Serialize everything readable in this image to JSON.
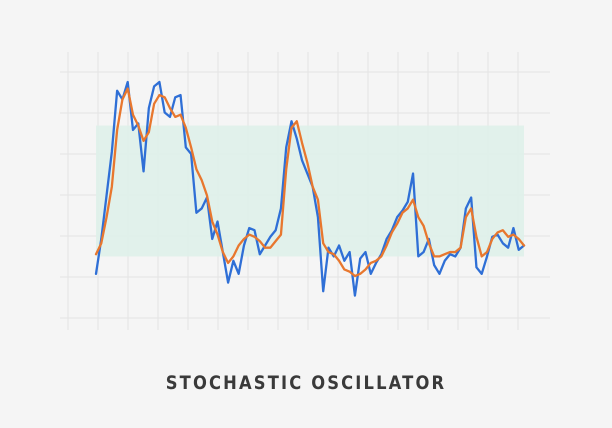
{
  "chart_data": {
    "type": "line",
    "title": "STOCHASTIC OSCILLATOR",
    "xlabel": "",
    "ylabel": "",
    "x": [
      0,
      1,
      2,
      3,
      4,
      5,
      6,
      7,
      8,
      9,
      10,
      11,
      12,
      13,
      14,
      15,
      16,
      17,
      18,
      19,
      20,
      21,
      22,
      23,
      24,
      25,
      26,
      27,
      28,
      29,
      30,
      31,
      32,
      33,
      34,
      35,
      36,
      37,
      38,
      39,
      40,
      41,
      42,
      43,
      44,
      45,
      46,
      47,
      48,
      49,
      50,
      51,
      52,
      53,
      54,
      55,
      56,
      57,
      58,
      59,
      60,
      61,
      62,
      63,
      64,
      65,
      66,
      67,
      68,
      69,
      70,
      71,
      72,
      73,
      74,
      75,
      76,
      77,
      78,
      79,
      80,
      81
    ],
    "xlim": [
      0,
      81
    ],
    "ylim": [
      0,
      100
    ],
    "grid": true,
    "overbought": 80,
    "oversold": 20,
    "series": [
      {
        "color": "#2f6fd6",
        "values": [
          12,
          28,
          48,
          68,
          96,
          92,
          100,
          78,
          81,
          59,
          88,
          98,
          100,
          86,
          84,
          93,
          94,
          70,
          67,
          40,
          42,
          47,
          28,
          36,
          22,
          8,
          18,
          12,
          25,
          33,
          32,
          21,
          25,
          29,
          32,
          42,
          70,
          82,
          74,
          64,
          58,
          52,
          38,
          4,
          24,
          20,
          25,
          18,
          22,
          2,
          19,
          22,
          12,
          17,
          21,
          28,
          32,
          38,
          41,
          45,
          58,
          20,
          22,
          28,
          16,
          12,
          18,
          21,
          20,
          24,
          42,
          47,
          15,
          12,
          20,
          29,
          30,
          26,
          24,
          33,
          23,
          25
        ]
      },
      {
        "color": "#e8772e",
        "values": [
          21,
          26,
          38,
          52,
          78,
          92,
          97,
          85,
          80,
          73,
          77,
          90,
          94,
          93,
          88,
          84,
          85,
          79,
          70,
          60,
          55,
          48,
          36,
          30,
          22,
          17,
          20,
          25,
          28,
          30,
          29,
          27,
          24,
          24,
          27,
          30,
          60,
          79,
          82,
          72,
          63,
          52,
          46,
          26,
          22,
          21,
          18,
          14,
          13,
          11,
          12,
          14,
          17,
          18,
          20,
          25,
          31,
          35,
          40,
          42,
          46,
          38,
          34,
          26,
          20,
          20,
          21,
          22,
          22,
          24,
          38,
          42,
          29,
          20,
          22,
          28,
          31,
          32,
          29,
          30,
          28,
          25
        ]
      }
    ]
  }
}
